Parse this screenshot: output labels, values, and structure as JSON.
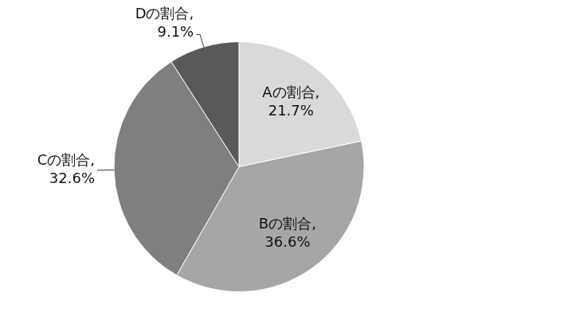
{
  "chart_data": {
    "type": "pie",
    "categories": [
      "Aの割合,",
      "Bの割合,",
      "Cの割合,",
      "Dの割合,"
    ],
    "values": [
      21.7,
      36.6,
      32.6,
      9.1
    ],
    "value_labels": [
      "21.7%",
      "36.6%",
      "32.6%",
      "9.1%"
    ],
    "colors": [
      "#d9d9d9",
      "#a6a6a6",
      "#7f7f7f",
      "#595959"
    ],
    "data_labels": true
  }
}
